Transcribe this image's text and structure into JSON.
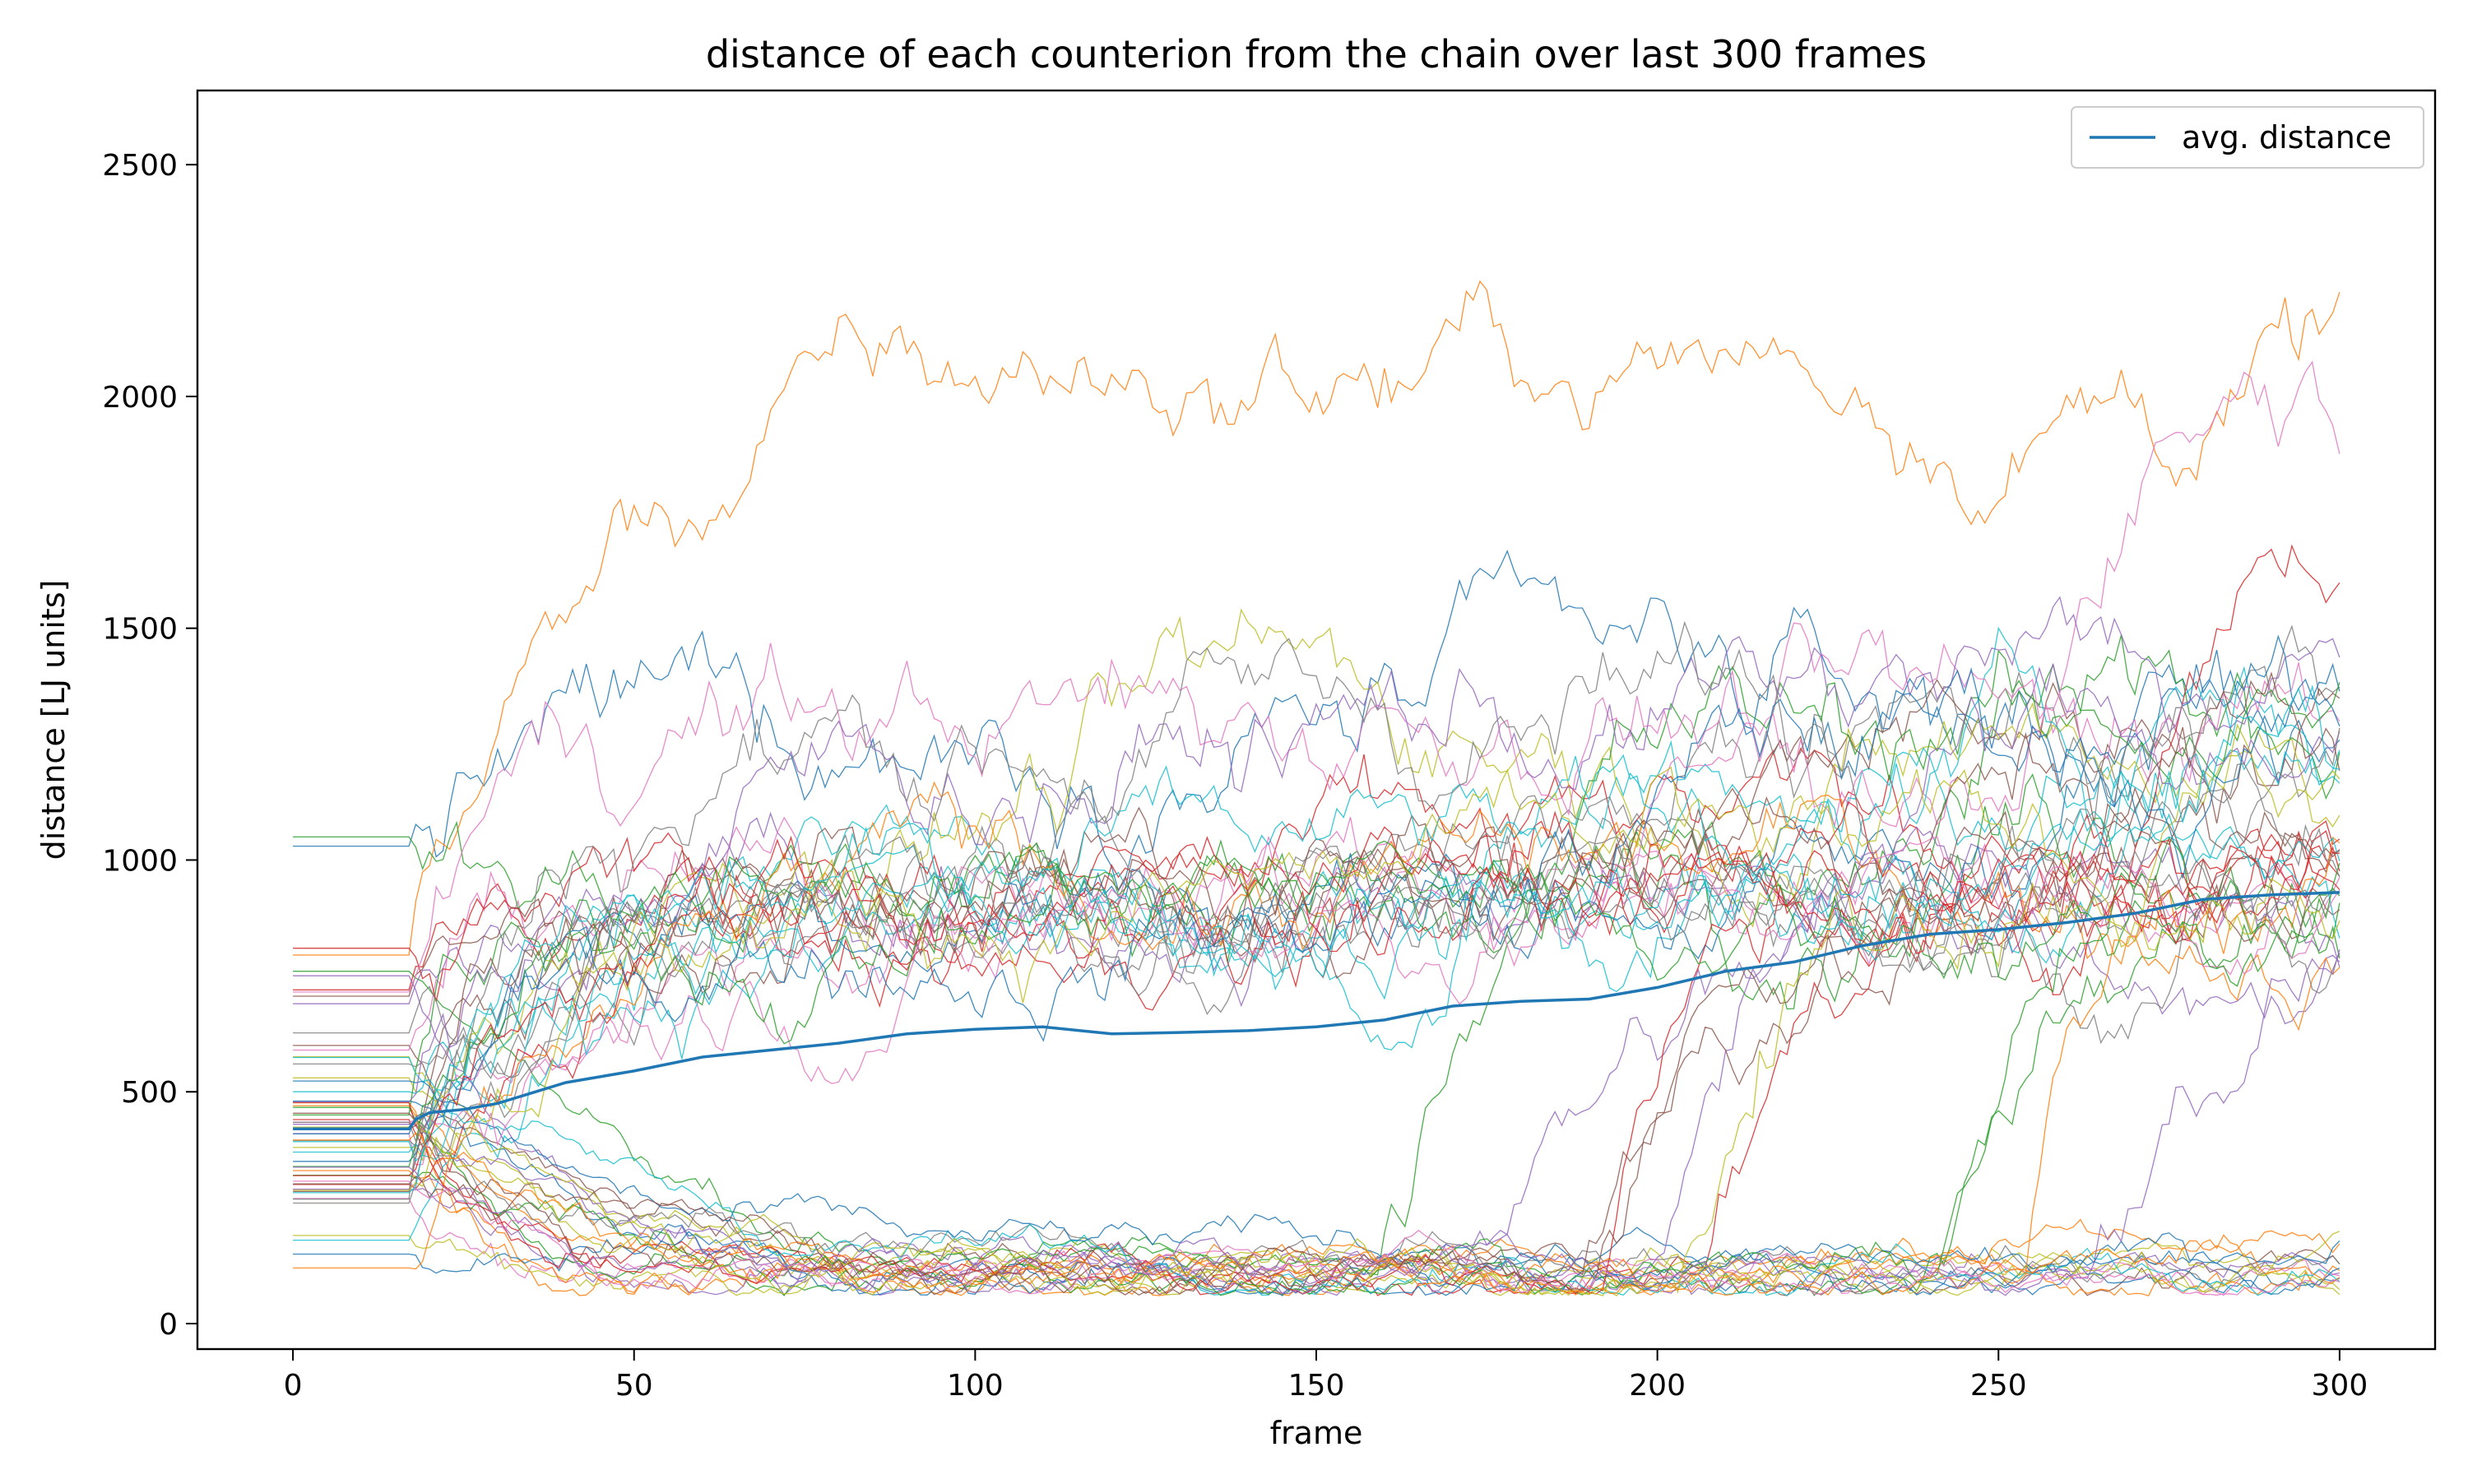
{
  "chart_data": {
    "type": "line",
    "title": "distance of each counterion from the chain over last 300 frames",
    "xlabel": "frame",
    "ylabel": "distance [LJ units]",
    "xlim": [
      -14,
      314
    ],
    "ylim": [
      -55,
      2660
    ],
    "x_ticks": [
      0,
      50,
      100,
      150,
      200,
      250,
      300
    ],
    "y_ticks": [
      0,
      500,
      1000,
      1500,
      2000,
      2500
    ],
    "grid": false,
    "legend": {
      "position": "top-right",
      "entries": [
        "avg. distance"
      ]
    },
    "highlight_color": "#1f77b4",
    "colors": [
      "#1f77b4",
      "#ff7f0e",
      "#2ca02c",
      "#d62728",
      "#9467bd",
      "#8c564b",
      "#e377c2",
      "#7f7f7f",
      "#bcbd22",
      "#17becf"
    ],
    "series": [
      {
        "name": "avg. distance",
        "x": [
          0,
          17,
          18,
          20,
          25,
          30,
          40,
          50,
          60,
          70,
          80,
          90,
          100,
          110,
          120,
          130,
          140,
          150,
          160,
          170,
          180,
          190,
          200,
          210,
          220,
          230,
          240,
          250,
          260,
          270,
          280,
          290,
          300
        ],
        "values": [
          420,
          420,
          440,
          455,
          462,
          475,
          520,
          545,
          575,
          590,
          605,
          625,
          635,
          640,
          625,
          628,
          632,
          640,
          655,
          685,
          695,
          700,
          725,
          760,
          780,
          815,
          840,
          850,
          865,
          885,
          915,
          925,
          930
        ]
      }
    ],
    "background_series": {
      "description_count": 60,
      "x_range": [
        0,
        300
      ],
      "plateau_levels": [
        110,
        940,
        1310,
        2080
      ],
      "early_start_values": [
        1030,
        795,
        760,
        720,
        690,
        600,
        590,
        560,
        530,
        500,
        480,
        470,
        450,
        440,
        430,
        420,
        410,
        395,
        380,
        370,
        350,
        330,
        320,
        300,
        290,
        285,
        270,
        260,
        190,
        180,
        150,
        120
      ]
    }
  }
}
